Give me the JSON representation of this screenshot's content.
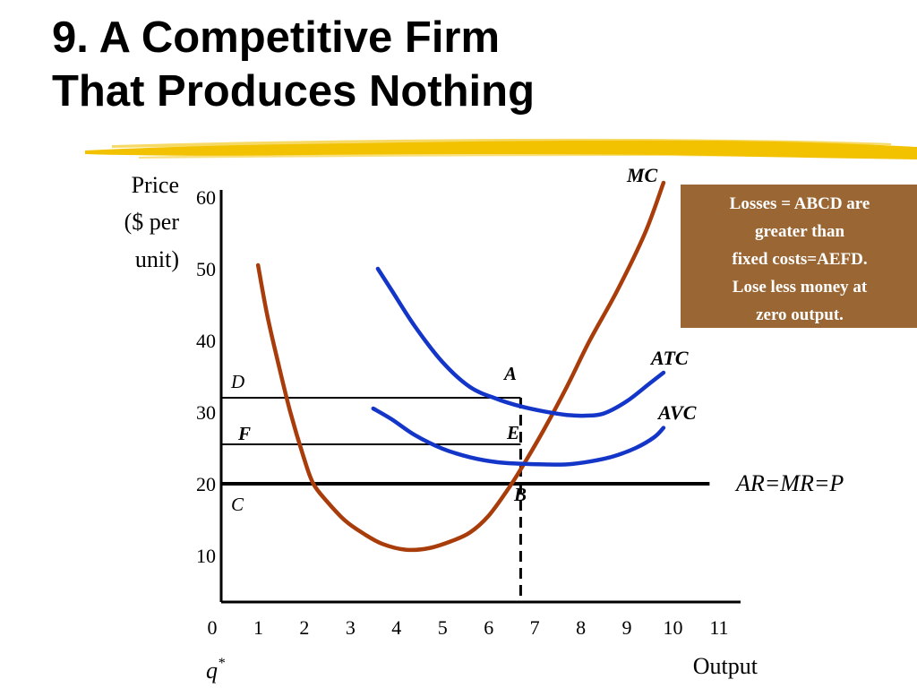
{
  "title": {
    "line1": "9. A Competitive Firm",
    "line2": "That Produces Nothing"
  },
  "colors": {
    "mc": "#a83c0a",
    "cost_curves": "#1436c8",
    "callout_bg": "#9a6734",
    "highlighter": "#f2c200"
  },
  "callout": {
    "lines": [
      "Losses = ABCD are",
      "greater than",
      "fixed costs=AEFD.",
      "Lose  less money at",
      "zero output."
    ]
  },
  "chart_data": {
    "type": "line",
    "xlabel": "Output",
    "ylabel_lines": [
      "Price",
      "($ per",
      "unit)"
    ],
    "xlim": [
      0,
      11
    ],
    "ylim": [
      4,
      60
    ],
    "x_ticks": [
      0,
      1,
      2,
      3,
      4,
      5,
      6,
      7,
      8,
      9,
      10,
      11
    ],
    "y_ticks": [
      10,
      20,
      30,
      40,
      50,
      60
    ],
    "grid": false,
    "q_star_label": "q",
    "q_star_sup": "*",
    "q_star_x": 6.5,
    "series": [
      {
        "name": "MC",
        "x": [
          0.8,
          1.0,
          1.25,
          1.5,
          1.8,
          2.0,
          2.3,
          2.7,
          3.1,
          3.5,
          4.0,
          4.5,
          5.0,
          5.4,
          5.8,
          6.2,
          6.5,
          7.0,
          7.5,
          8.0,
          8.6,
          9.2,
          9.6
        ],
        "y": [
          50.5,
          43.5,
          36.5,
          30.0,
          23.5,
          20.0,
          17.5,
          14.8,
          13.0,
          11.6,
          10.8,
          11.0,
          12.0,
          13.2,
          15.5,
          19.0,
          22.0,
          27.5,
          33.5,
          40.0,
          47.0,
          55.0,
          62.0
        ]
      },
      {
        "name": "ATC",
        "x": [
          3.4,
          3.7,
          4.2,
          4.8,
          5.4,
          6.0,
          6.5,
          7.0,
          7.5,
          7.9,
          8.3,
          8.8,
          9.3,
          9.6
        ],
        "y": [
          50.0,
          47.0,
          42.0,
          37.0,
          33.5,
          31.8,
          30.8,
          30.1,
          29.6,
          29.5,
          29.8,
          31.5,
          34.0,
          35.5
        ]
      },
      {
        "name": "AVC",
        "x": [
          3.3,
          3.7,
          4.2,
          4.8,
          5.4,
          6.0,
          6.5,
          7.0,
          7.5,
          8.0,
          8.5,
          9.0,
          9.4,
          9.6
        ],
        "y": [
          30.5,
          29.0,
          26.8,
          24.9,
          23.7,
          23.0,
          22.8,
          22.7,
          22.7,
          23.1,
          23.8,
          25.0,
          26.5,
          27.8
        ]
      }
    ],
    "price_line": {
      "label": "AR=MR=P",
      "y": 20,
      "x_end": 10.6
    },
    "reference_lines": [
      {
        "name": "ATC level",
        "y": 32,
        "x_start": 0,
        "x_end": 6.5
      },
      {
        "name": "AVC level",
        "y": 25.5,
        "x_start": 0,
        "x_end": 6.5
      }
    ],
    "points": [
      {
        "label": "A",
        "x": 6.5,
        "y": 32
      },
      {
        "label": "E",
        "x": 6.5,
        "y": 25.5
      },
      {
        "label": "B",
        "x": 6.5,
        "y": 20
      },
      {
        "label": "D",
        "x": 0,
        "y": 32
      },
      {
        "label": "F",
        "x": 0,
        "y": 25.5
      },
      {
        "label": "C",
        "x": 0,
        "y": 20
      }
    ]
  }
}
